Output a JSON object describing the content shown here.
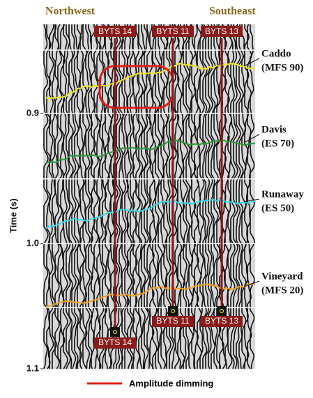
{
  "header": {
    "left": "Northwest",
    "right": "Southeast"
  },
  "axis": {
    "label": "Time (s)",
    "ticks": [
      "0.9",
      "1.0",
      "1.1"
    ]
  },
  "wells": [
    {
      "label": "BYTS 14"
    },
    {
      "label": "BYTS 11"
    },
    {
      "label": "BYTS 13"
    }
  ],
  "horizons": [
    {
      "name": "Caddo",
      "code": "(MFS 90)"
    },
    {
      "name": "Davis",
      "code": "(ES 70)"
    },
    {
      "name": "Runaway",
      "code": "(ES 50)"
    },
    {
      "name": "Vineyard",
      "code": "(MFS 20)"
    }
  ],
  "legend": {
    "label": "Amplitude dimming"
  }
}
